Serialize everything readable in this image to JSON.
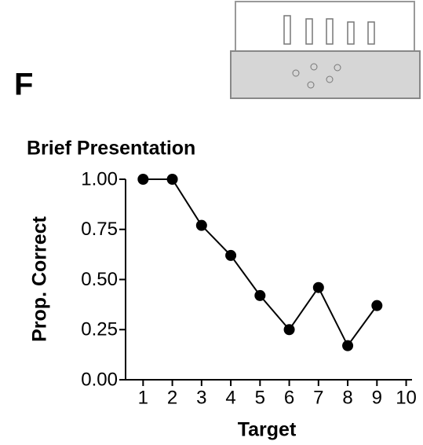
{
  "chart_data": {
    "type": "line",
    "panel_label": "F",
    "title": "Brief Presentation",
    "x_label": "Target",
    "y_label": "Prop. Correct",
    "x": [
      1,
      2,
      3,
      4,
      5,
      6,
      7,
      8,
      9
    ],
    "series": [
      {
        "name": null,
        "color": "#000000",
        "values": [
          1,
          1,
          0.77,
          0.62,
          0.42,
          0.25,
          0.46,
          0.17,
          0.37
        ]
      }
    ],
    "xlim": [
      0.4,
      10.2
    ],
    "xticks": [
      1,
      2,
      3,
      4,
      5,
      6,
      7,
      8,
      9,
      10
    ],
    "ylim": [
      0,
      1
    ],
    "yticks": [
      {
        "value": 0,
        "label": "0.00"
      },
      0.25,
      {
        "value": 0.5,
        "label": "0.50"
      },
      0.75,
      {
        "value": 1,
        "label": "1.00"
      }
    ],
    "grid": false
  }
}
